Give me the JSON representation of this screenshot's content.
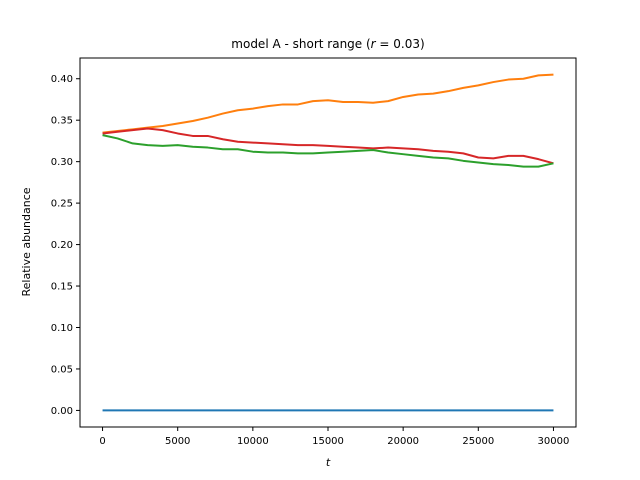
{
  "chart_data": {
    "type": "line",
    "title_main": "model A - short range (",
    "title_var": "r",
    "title_rest": " = 0.03)",
    "xlabel": "t",
    "ylabel": "Relative abundance",
    "xlim": [
      -1500,
      31500
    ],
    "ylim": [
      -0.02,
      0.425
    ],
    "xticks": [
      0,
      5000,
      10000,
      15000,
      20000,
      25000,
      30000
    ],
    "yticks": [
      0.0,
      0.05,
      0.1,
      0.15,
      0.2,
      0.25,
      0.3,
      0.35,
      0.4
    ],
    "xtick_labels": [
      "0",
      "5000",
      "10000",
      "15000",
      "20000",
      "25000",
      "30000"
    ],
    "ytick_labels": [
      "0.00",
      "0.05",
      "0.10",
      "0.15",
      "0.20",
      "0.25",
      "0.30",
      "0.35",
      "0.40"
    ],
    "grid": false,
    "series": [
      {
        "color": "#1f77b4",
        "x": [
          0,
          30000
        ],
        "values": [
          0.0,
          0.0
        ]
      },
      {
        "color": "#ff7f0e",
        "x": [
          0,
          1000,
          2000,
          3000,
          4000,
          5000,
          6000,
          7000,
          8000,
          9000,
          10000,
          11000,
          12000,
          13000,
          14000,
          15000,
          16000,
          17000,
          18000,
          19000,
          20000,
          21000,
          22000,
          23000,
          24000,
          25000,
          26000,
          27000,
          28000,
          29000,
          30000
        ],
        "values": [
          0.335,
          0.337,
          0.339,
          0.341,
          0.343,
          0.346,
          0.349,
          0.353,
          0.358,
          0.362,
          0.364,
          0.367,
          0.369,
          0.369,
          0.373,
          0.374,
          0.372,
          0.372,
          0.371,
          0.373,
          0.378,
          0.381,
          0.382,
          0.385,
          0.389,
          0.392,
          0.396,
          0.399,
          0.4,
          0.404,
          0.405
        ]
      },
      {
        "color": "#d62728",
        "x": [
          0,
          1000,
          2000,
          3000,
          4000,
          5000,
          6000,
          7000,
          8000,
          9000,
          10000,
          11000,
          12000,
          13000,
          14000,
          15000,
          16000,
          17000,
          18000,
          19000,
          20000,
          21000,
          22000,
          23000,
          24000,
          25000,
          26000,
          27000,
          28000,
          29000,
          30000
        ],
        "values": [
          0.334,
          0.336,
          0.338,
          0.34,
          0.338,
          0.334,
          0.331,
          0.331,
          0.327,
          0.324,
          0.323,
          0.322,
          0.321,
          0.32,
          0.32,
          0.319,
          0.318,
          0.317,
          0.316,
          0.317,
          0.316,
          0.315,
          0.313,
          0.312,
          0.31,
          0.305,
          0.304,
          0.307,
          0.307,
          0.303,
          0.298
        ]
      },
      {
        "color": "#2ca02c",
        "x": [
          0,
          1000,
          2000,
          3000,
          4000,
          5000,
          6000,
          7000,
          8000,
          9000,
          10000,
          11000,
          12000,
          13000,
          14000,
          15000,
          16000,
          17000,
          18000,
          19000,
          20000,
          21000,
          22000,
          23000,
          24000,
          25000,
          26000,
          27000,
          28000,
          29000,
          30000
        ],
        "values": [
          0.332,
          0.328,
          0.322,
          0.32,
          0.319,
          0.32,
          0.318,
          0.317,
          0.315,
          0.315,
          0.312,
          0.311,
          0.311,
          0.31,
          0.31,
          0.311,
          0.312,
          0.313,
          0.314,
          0.311,
          0.309,
          0.307,
          0.305,
          0.304,
          0.301,
          0.299,
          0.297,
          0.296,
          0.294,
          0.294,
          0.298
        ]
      }
    ]
  }
}
